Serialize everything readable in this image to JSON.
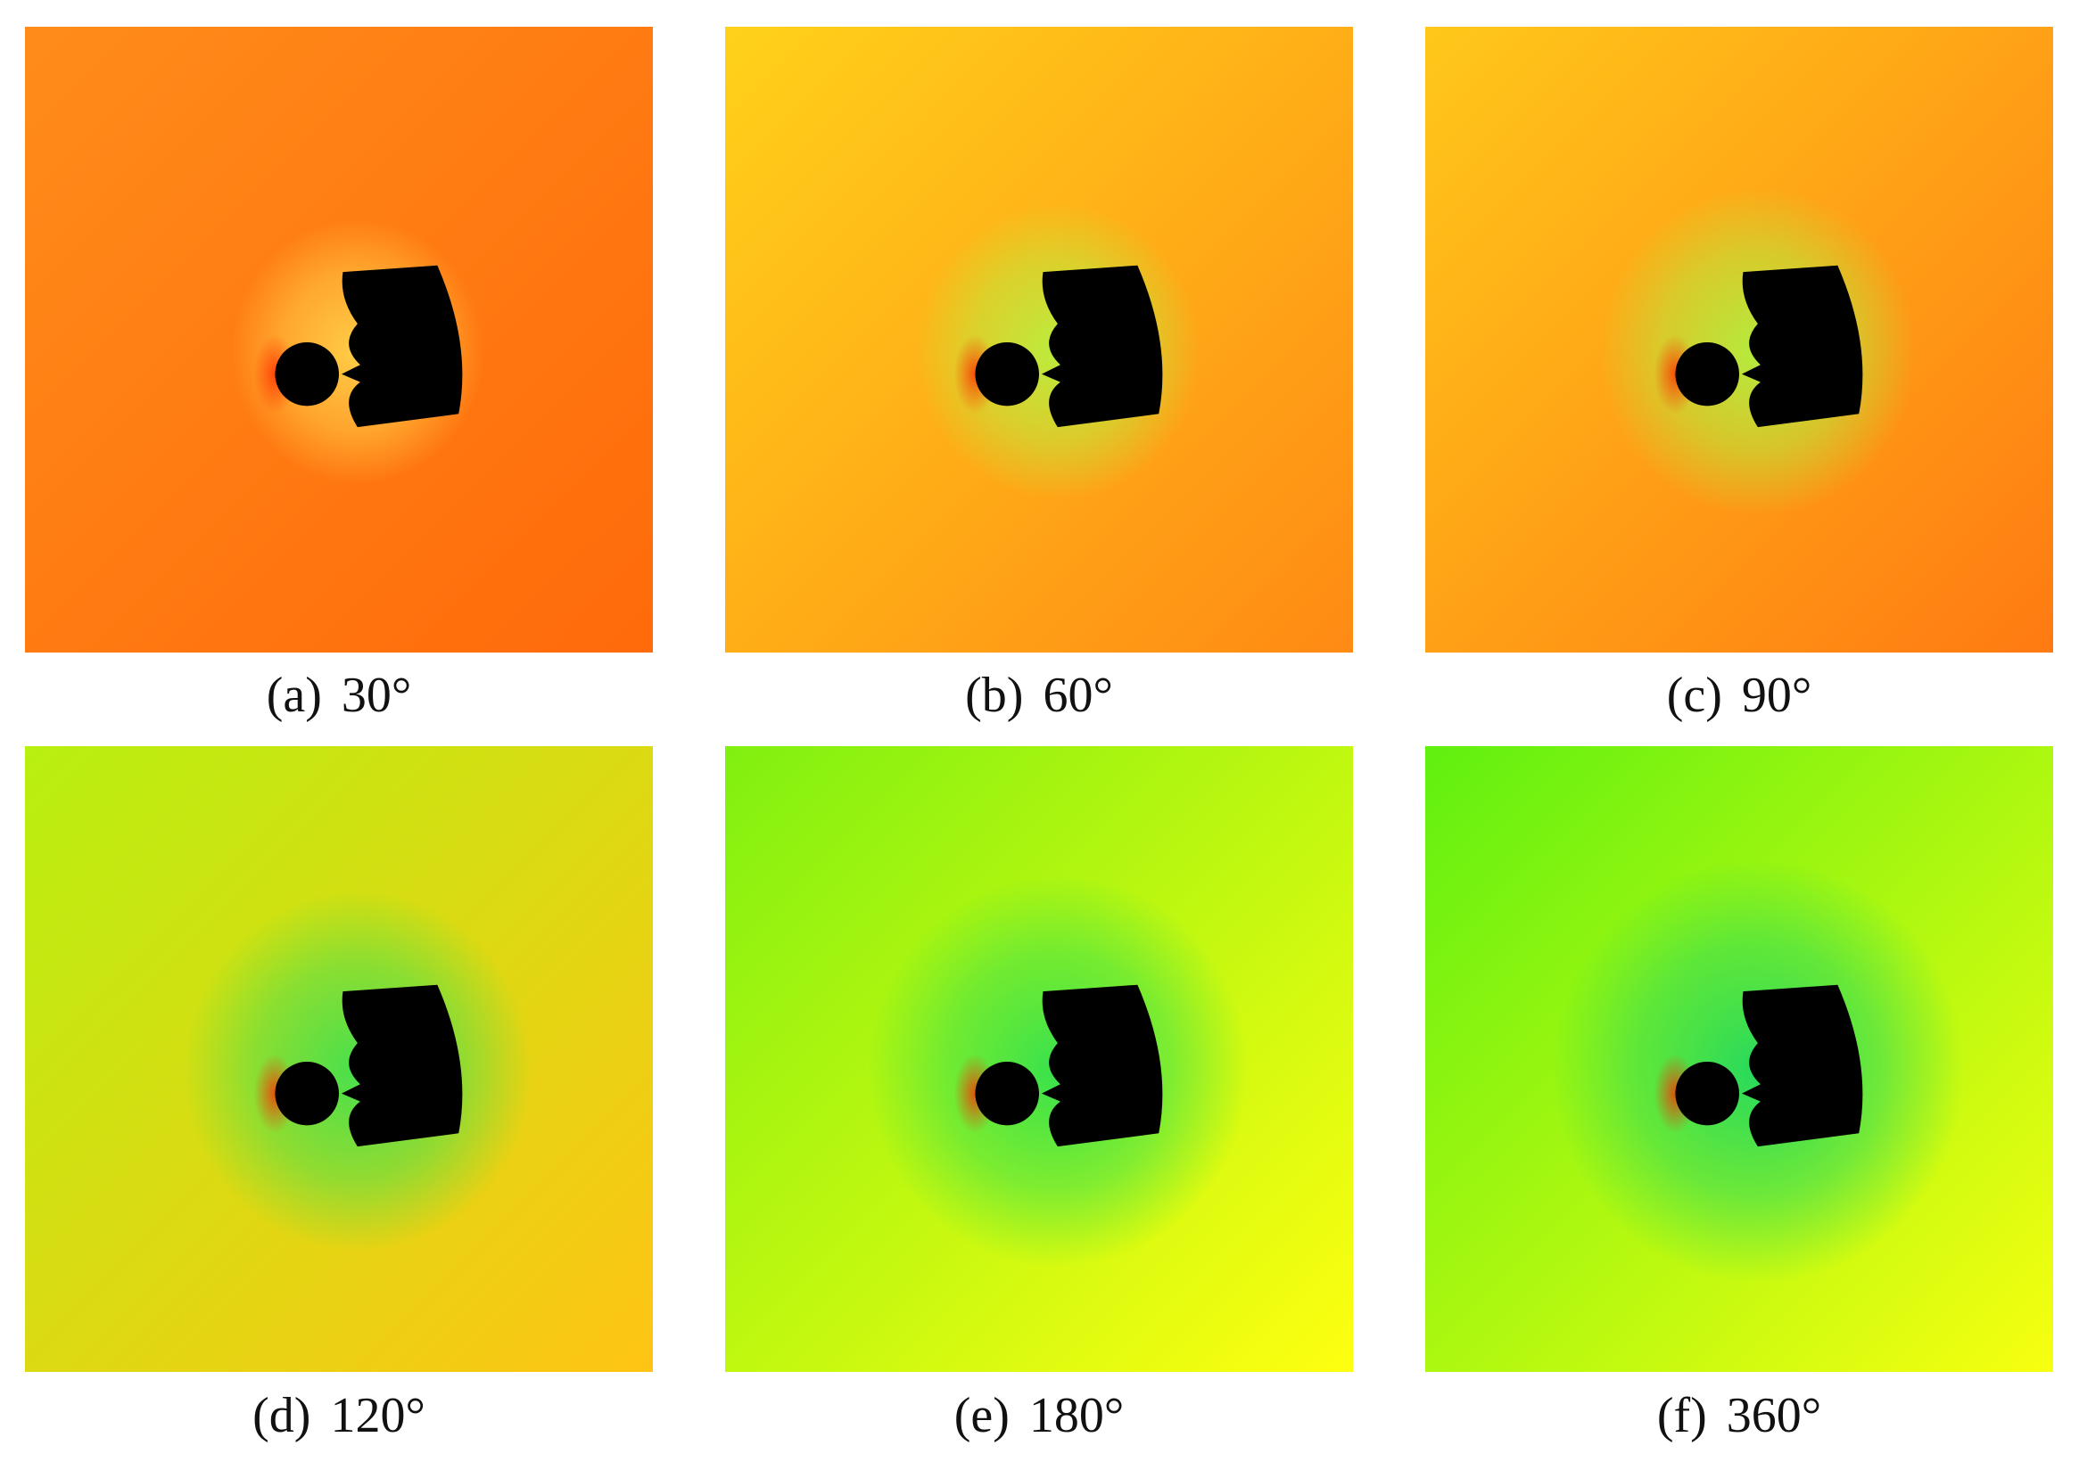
{
  "panels": [
    {
      "label": "(a)",
      "angle": "30°"
    },
    {
      "label": "(b)",
      "angle": "60°"
    },
    {
      "label": "(c)",
      "angle": "90°"
    },
    {
      "label": "(d)",
      "angle": "120°"
    },
    {
      "label": "(e)",
      "angle": "180°"
    },
    {
      "label": "(f)",
      "angle": "360°"
    }
  ]
}
